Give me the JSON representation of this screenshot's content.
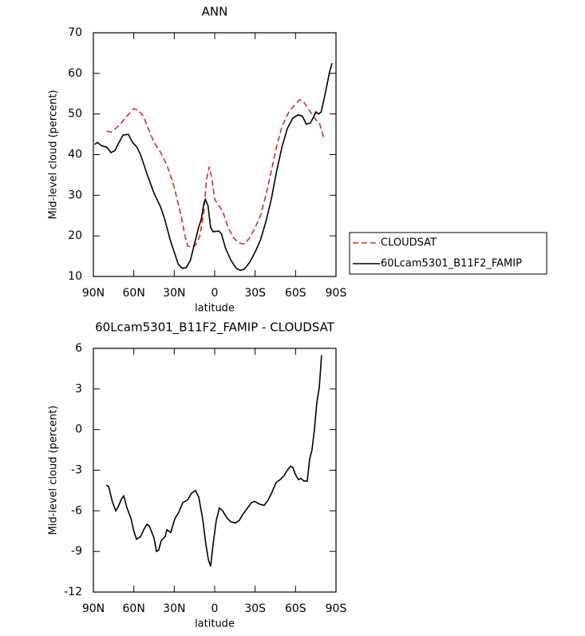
{
  "chart_data": [
    {
      "type": "line",
      "title": "ANN",
      "xlabel": "latitude",
      "ylabel": "Mid-level cloud (percent)",
      "xlim": [
        90,
        -90
      ],
      "ylim": [
        10,
        70
      ],
      "xticks": [
        {
          "value": 90,
          "label": "90N"
        },
        {
          "value": 60,
          "label": "60N"
        },
        {
          "value": 30,
          "label": "30N"
        },
        0,
        {
          "value": -30,
          "label": "30S"
        },
        {
          "value": -60,
          "label": "60S"
        },
        {
          "value": -90,
          "label": "90S"
        }
      ],
      "yticks": [
        10,
        20,
        30,
        40,
        50,
        60,
        70
      ],
      "legend": "outside-right",
      "series": [
        {
          "name": "CLOUDSAT",
          "color": "#e8231f",
          "dash": true,
          "x": [
            80,
            77,
            75,
            70,
            65,
            60,
            57,
            53,
            50,
            45,
            40,
            35,
            30,
            25,
            22,
            20,
            17,
            14,
            11,
            8,
            6,
            4,
            2,
            0,
            -3,
            -6,
            -10,
            -14,
            -18,
            -22,
            -26,
            -30,
            -34,
            -38,
            -42,
            -46,
            -50,
            -55,
            -60,
            -63,
            -66,
            -70,
            -74,
            -78,
            -81
          ],
          "values": [
            45.8,
            45.5,
            46,
            47.5,
            49.5,
            51.3,
            51,
            49.5,
            47,
            43,
            40.5,
            37,
            32,
            25,
            20,
            17.5,
            17.2,
            17.8,
            20,
            26,
            34,
            37,
            34,
            29,
            27.5,
            26,
            22,
            19.5,
            18.2,
            18,
            19.5,
            22,
            25,
            30,
            36,
            42,
            47,
            50.5,
            52.5,
            53.5,
            53,
            51,
            49,
            47.5,
            44
          ]
        },
        {
          "name": "60Lcam5301_B11F2_FAMIP",
          "color": "#000000",
          "dash": false,
          "x": [
            89,
            87,
            84,
            80,
            77,
            74,
            71,
            68,
            64,
            61,
            58,
            55,
            50,
            45,
            40,
            37,
            33,
            30,
            27,
            24,
            21,
            18,
            15,
            12,
            10,
            8,
            7,
            5,
            3,
            1,
            -3,
            -5,
            -8,
            -12,
            -16,
            -19,
            -22,
            -26,
            -30,
            -34,
            -38,
            -42,
            -46,
            -50,
            -54,
            -58,
            -62,
            -65,
            -68,
            -71,
            -73,
            -75,
            -77,
            -79,
            -82,
            -85,
            -87
          ],
          "values": [
            42.5,
            43,
            42.2,
            41.8,
            40.5,
            41,
            43,
            44.8,
            45,
            43,
            42,
            40,
            35,
            30.5,
            27,
            24,
            19,
            16,
            13,
            12,
            12.2,
            14,
            18,
            22,
            24,
            28,
            29,
            27.5,
            22,
            21,
            21.2,
            20.5,
            17,
            14,
            12,
            11.5,
            11.8,
            13.5,
            16,
            19,
            23.5,
            29,
            36,
            42,
            46.5,
            49,
            49.8,
            49.5,
            47.5,
            47.8,
            49,
            50.5,
            50,
            50.5,
            55,
            60,
            62.5
          ]
        }
      ]
    },
    {
      "type": "line",
      "title": "60Lcam5301_B11F2_FAMIP - CLOUDSAT",
      "xlabel": "latitude",
      "ylabel": "Mid-level cloud (percent)",
      "xlim": [
        90,
        -90
      ],
      "ylim": [
        -12,
        6
      ],
      "xticks": [
        {
          "value": 90,
          "label": "90N"
        },
        {
          "value": 60,
          "label": "60N"
        },
        {
          "value": 30,
          "label": "30N"
        },
        0,
        {
          "value": -30,
          "label": "30S"
        },
        {
          "value": -60,
          "label": "60S"
        },
        {
          "value": -90,
          "label": "90S"
        }
      ],
      "yticks": [
        -12,
        -9,
        -6,
        -3,
        0,
        3,
        6
      ],
      "series": [
        {
          "color": "#000000",
          "dash": false,
          "x": [
            80.5,
            78.7,
            76,
            73.4,
            71.6,
            69,
            67.5,
            65,
            62,
            60,
            58,
            55,
            52.7,
            50.3,
            48.6,
            45,
            43.2,
            41.5,
            39.7,
            36.7,
            35.5,
            32.6,
            29.6,
            26.6,
            23.7,
            20.1,
            17.2,
            14.2,
            11.8,
            8.9,
            6.5,
            4.7,
            3,
            1.2,
            -1.2,
            -3.5,
            -5.9,
            -8.9,
            -11.8,
            -15.4,
            -18.3,
            -21.3,
            -24.3,
            -27.2,
            -29.6,
            -33.2,
            -36.7,
            -39.7,
            -42.6,
            -45.6,
            -48.5,
            -51.5,
            -53.9,
            -56.2,
            -58,
            -59.8,
            -62.2,
            -63.9,
            -66.3,
            -68.7,
            -70.4,
            -72.2,
            -74,
            -75.8,
            -77.6,
            -79.3
          ],
          "values": [
            -4.1,
            -4.2,
            -5.3,
            -6,
            -5.7,
            -5.1,
            -4.9,
            -5.8,
            -6.6,
            -7.5,
            -8.1,
            -7.9,
            -7.4,
            -7,
            -7.1,
            -8,
            -9,
            -8.9,
            -8.2,
            -7.9,
            -7.4,
            -7.6,
            -6.6,
            -6.1,
            -5.4,
            -5.2,
            -4.7,
            -4.5,
            -5,
            -6.6,
            -8.5,
            -9.6,
            -10.1,
            -8.5,
            -6.7,
            -5.8,
            -6,
            -6.5,
            -6.8,
            -6.9,
            -6.7,
            -6.2,
            -5.8,
            -5.4,
            -5.3,
            -5.5,
            -5.6,
            -5.2,
            -4.6,
            -3.9,
            -3.7,
            -3.4,
            -3,
            -2.7,
            -2.8,
            -3.3,
            -3.7,
            -3.6,
            -3.8,
            -3.8,
            -2.2,
            -1.5,
            0,
            2,
            3.1,
            5.5
          ]
        }
      ]
    }
  ]
}
